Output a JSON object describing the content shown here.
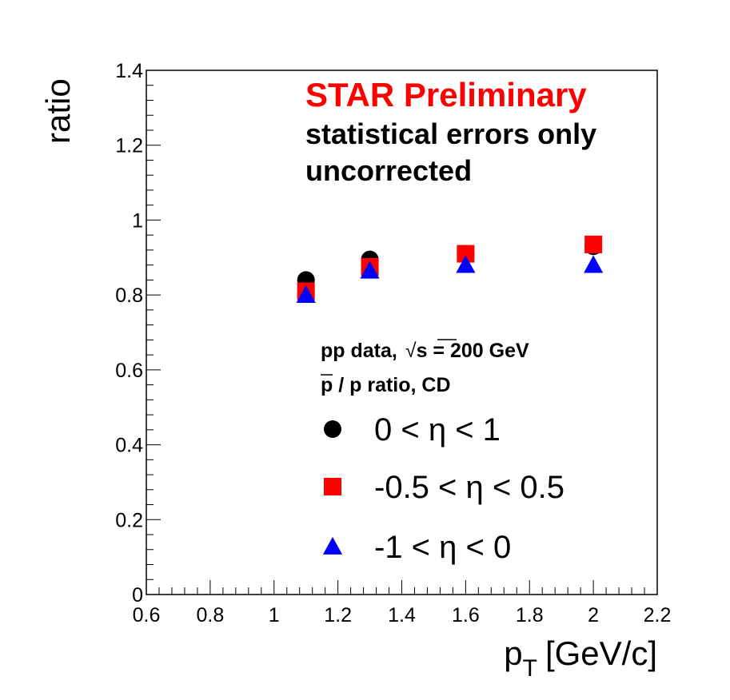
{
  "chart_data": {
    "type": "scatter",
    "xlabel_main": "p",
    "xlabel_sub": "T",
    "xlabel_unit": "[GeV/c]",
    "ylabel": "ratio",
    "xlim": [
      0.6,
      2.2
    ],
    "ylim": [
      0,
      1.4
    ],
    "x_ticks": [
      {
        "value": 0.6,
        "label": "0.6"
      },
      {
        "value": 0.8,
        "label": "0.8"
      },
      {
        "value": 1.0,
        "label": "1"
      },
      {
        "value": 1.2,
        "label": "1.2"
      },
      {
        "value": 1.4,
        "label": "1.4"
      },
      {
        "value": 1.6,
        "label": "1.6"
      },
      {
        "value": 1.8,
        "label": "1.8"
      },
      {
        "value": 2.0,
        "label": "2"
      },
      {
        "value": 2.2,
        "label": "2.2"
      }
    ],
    "y_ticks": [
      {
        "value": 0,
        "label": "0"
      },
      {
        "value": 0.2,
        "label": "0.2"
      },
      {
        "value": 0.4,
        "label": "0.4"
      },
      {
        "value": 0.6,
        "label": "0.6"
      },
      {
        "value": 0.8,
        "label": "0.8"
      },
      {
        "value": 1.0,
        "label": "1"
      },
      {
        "value": 1.2,
        "label": "1.2"
      },
      {
        "value": 1.4,
        "label": "1.4"
      }
    ],
    "annotations": {
      "star": "STAR Preliminary",
      "star_color": "#ff0000",
      "errors": "statistical errors only",
      "uncorrected": "uncorrected",
      "dataset_prefix": "pp data,",
      "sqrt_symbol": "√",
      "sqrt_arg": "s",
      "dataset_energy": " = 200 GeV",
      "ratio_pbar": "p",
      "ratio_rest": " / p ratio, CD"
    },
    "series": [
      {
        "name": "0 < η < 1",
        "marker": "circle",
        "color": "#000000",
        "x": [
          1.1,
          1.3,
          1.6,
          2.0
        ],
        "y": [
          0.84,
          0.895,
          0.91,
          0.93
        ]
      },
      {
        "name": "-0.5 < η < 0.5",
        "marker": "square",
        "color": "#ff0000",
        "x": [
          1.1,
          1.3,
          1.6,
          2.0
        ],
        "y": [
          0.81,
          0.875,
          0.91,
          0.935
        ]
      },
      {
        "name": "-1 < η < 0",
        "marker": "triangle",
        "color": "#0000ff",
        "x": [
          1.1,
          1.3,
          1.6,
          2.0
        ],
        "y": [
          0.8,
          0.865,
          0.88,
          0.88
        ]
      }
    ]
  }
}
